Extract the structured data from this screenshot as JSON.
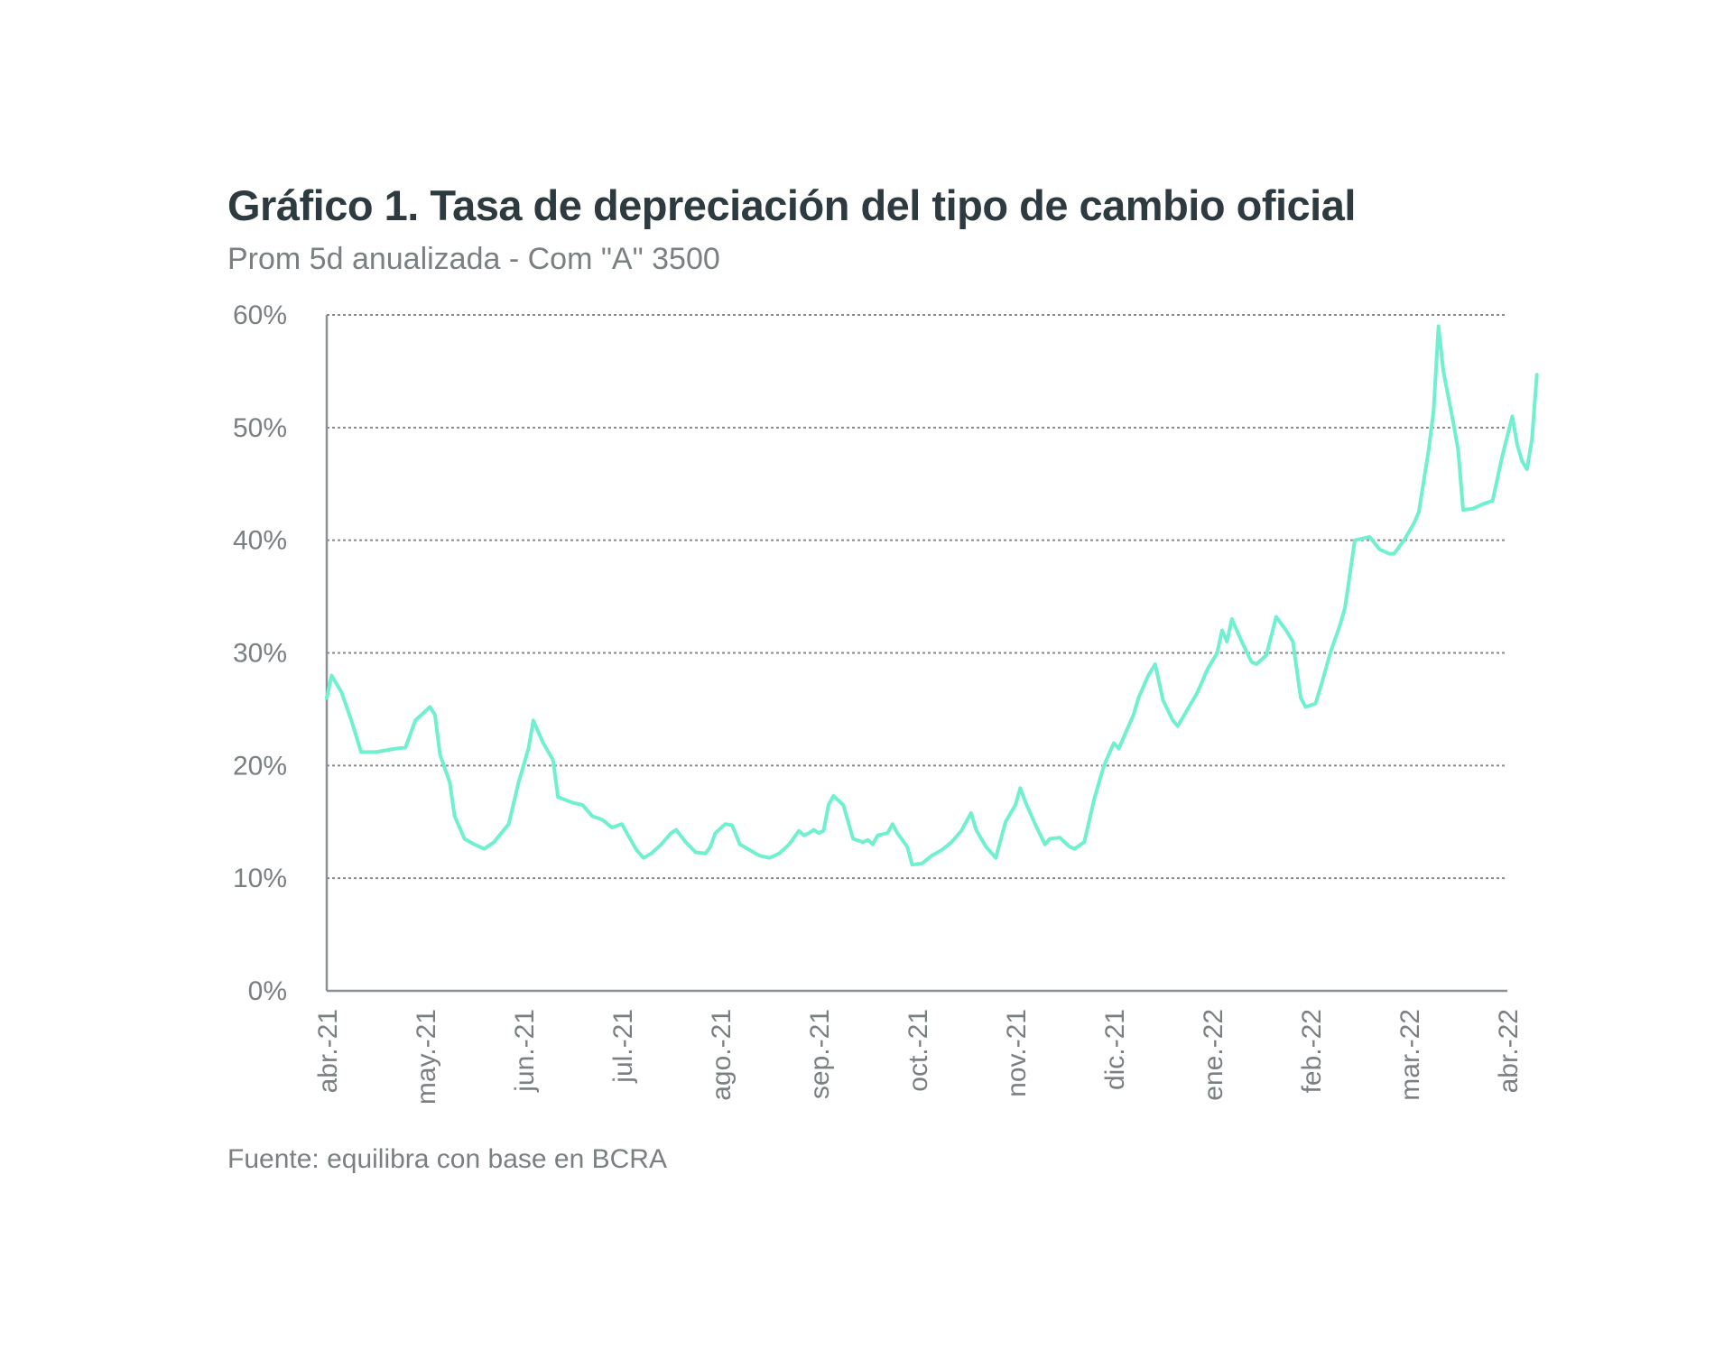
{
  "chart_data": {
    "type": "line",
    "title": "Gráfico 1. Tasa de depreciación del tipo de cambio oficial",
    "subtitle": "Prom 5d anualizada - Com \"A\" 3500",
    "source": "Fuente: equilibra con base en BCRA",
    "xlabel": "",
    "ylabel": "",
    "ylim": [
      0,
      60
    ],
    "yticks": [
      0,
      10,
      20,
      30,
      40,
      50,
      60
    ],
    "ytick_labels": [
      "0%",
      "10%",
      "20%",
      "30%",
      "40%",
      "50%",
      "60%"
    ],
    "xtick_labels": [
      "abr.-21",
      "may.-21",
      "jun.-21",
      "jul.-21",
      "ago.-21",
      "sep.-21",
      "oct.-21",
      "nov.-21",
      "dic.-21",
      "ene.-22",
      "feb.-22",
      "mar.-22",
      "abr.-22"
    ],
    "grid": "horizontal dotted",
    "legend": "none",
    "line_color": "#6ff0cf",
    "series": [
      {
        "values": [
          [
            0.0,
            26.0
          ],
          [
            0.05,
            28.0
          ],
          [
            0.15,
            26.5
          ],
          [
            0.25,
            24.0
          ],
          [
            0.35,
            21.2
          ],
          [
            0.5,
            21.2
          ],
          [
            0.7,
            21.5
          ],
          [
            0.8,
            21.6
          ],
          [
            0.9,
            24.0
          ],
          [
            1.0,
            24.8
          ],
          [
            1.05,
            25.2
          ],
          [
            1.1,
            24.5
          ],
          [
            1.15,
            21.0
          ],
          [
            1.25,
            18.5
          ],
          [
            1.3,
            15.5
          ],
          [
            1.4,
            13.5
          ],
          [
            1.5,
            13.0
          ],
          [
            1.6,
            12.6
          ],
          [
            1.7,
            13.2
          ],
          [
            1.85,
            14.8
          ],
          [
            1.95,
            18.5
          ],
          [
            2.05,
            21.5
          ],
          [
            2.1,
            24.0
          ],
          [
            2.2,
            22.0
          ],
          [
            2.3,
            20.5
          ],
          [
            2.35,
            17.2
          ],
          [
            2.5,
            16.7
          ],
          [
            2.6,
            16.5
          ],
          [
            2.7,
            15.5
          ],
          [
            2.8,
            15.2
          ],
          [
            2.9,
            14.5
          ],
          [
            3.0,
            14.8
          ],
          [
            3.05,
            14.0
          ],
          [
            3.15,
            12.5
          ],
          [
            3.22,
            11.8
          ],
          [
            3.3,
            12.2
          ],
          [
            3.4,
            13.0
          ],
          [
            3.5,
            14.0
          ],
          [
            3.55,
            14.3
          ],
          [
            3.65,
            13.2
          ],
          [
            3.75,
            12.3
          ],
          [
            3.85,
            12.2
          ],
          [
            3.9,
            12.8
          ],
          [
            3.95,
            14.0
          ],
          [
            4.05,
            14.8
          ],
          [
            4.12,
            14.7
          ],
          [
            4.2,
            13.0
          ],
          [
            4.3,
            12.5
          ],
          [
            4.4,
            12.0
          ],
          [
            4.5,
            11.8
          ],
          [
            4.6,
            12.2
          ],
          [
            4.7,
            13.0
          ],
          [
            4.8,
            14.2
          ],
          [
            4.85,
            13.8
          ],
          [
            4.9,
            14.0
          ],
          [
            4.95,
            14.3
          ],
          [
            5.0,
            14.0
          ],
          [
            5.05,
            14.2
          ],
          [
            5.1,
            16.5
          ],
          [
            5.15,
            17.3
          ],
          [
            5.25,
            16.5
          ],
          [
            5.35,
            13.5
          ],
          [
            5.45,
            13.2
          ],
          [
            5.5,
            13.4
          ],
          [
            5.55,
            13.0
          ],
          [
            5.6,
            13.8
          ],
          [
            5.7,
            14.0
          ],
          [
            5.75,
            14.8
          ],
          [
            5.8,
            14.0
          ],
          [
            5.9,
            12.8
          ],
          [
            5.95,
            11.2
          ],
          [
            6.05,
            11.3
          ],
          [
            6.15,
            12.0
          ],
          [
            6.25,
            12.5
          ],
          [
            6.35,
            13.2
          ],
          [
            6.45,
            14.2
          ],
          [
            6.55,
            15.8
          ],
          [
            6.6,
            14.3
          ],
          [
            6.7,
            12.8
          ],
          [
            6.8,
            11.8
          ],
          [
            6.9,
            15.0
          ],
          [
            7.0,
            16.5
          ],
          [
            7.05,
            18.0
          ],
          [
            7.1,
            16.8
          ],
          [
            7.2,
            14.8
          ],
          [
            7.3,
            13.0
          ],
          [
            7.35,
            13.5
          ],
          [
            7.45,
            13.6
          ],
          [
            7.55,
            12.8
          ],
          [
            7.6,
            12.6
          ],
          [
            7.7,
            13.2
          ],
          [
            7.8,
            17.0
          ],
          [
            7.9,
            20.0
          ],
          [
            8.0,
            22.0
          ],
          [
            8.05,
            21.5
          ],
          [
            8.1,
            22.5
          ],
          [
            8.2,
            24.5
          ],
          [
            8.25,
            26.0
          ],
          [
            8.35,
            28.0
          ],
          [
            8.42,
            29.0
          ],
          [
            8.5,
            25.8
          ],
          [
            8.6,
            24.0
          ],
          [
            8.65,
            23.5
          ],
          [
            8.75,
            25.0
          ],
          [
            8.85,
            26.5
          ],
          [
            8.95,
            28.5
          ],
          [
            9.05,
            30.0
          ],
          [
            9.1,
            32.0
          ],
          [
            9.15,
            31.0
          ],
          [
            9.2,
            33.0
          ],
          [
            9.3,
            31.0
          ],
          [
            9.4,
            29.2
          ],
          [
            9.45,
            29.0
          ],
          [
            9.55,
            29.8
          ],
          [
            9.6,
            31.5
          ],
          [
            9.65,
            33.2
          ],
          [
            9.75,
            32.0
          ],
          [
            9.82,
            31.0
          ],
          [
            9.9,
            26.0
          ],
          [
            9.95,
            25.2
          ],
          [
            10.05,
            25.5
          ],
          [
            10.12,
            27.5
          ],
          [
            10.2,
            30.0
          ],
          [
            10.3,
            32.5
          ],
          [
            10.35,
            34.0
          ],
          [
            10.45,
            40.0
          ],
          [
            10.55,
            40.2
          ],
          [
            10.6,
            40.3
          ],
          [
            10.7,
            39.2
          ],
          [
            10.8,
            38.8
          ],
          [
            10.85,
            38.8
          ],
          [
            10.95,
            40.0
          ],
          [
            11.05,
            41.5
          ],
          [
            11.1,
            42.5
          ],
          [
            11.2,
            48.0
          ],
          [
            11.25,
            51.5
          ],
          [
            11.3,
            59.0
          ],
          [
            11.35,
            55.0
          ],
          [
            11.45,
            50.5
          ],
          [
            11.5,
            48.0
          ],
          [
            11.55,
            42.7
          ],
          [
            11.65,
            42.8
          ],
          [
            11.75,
            43.2
          ],
          [
            11.85,
            43.5
          ],
          [
            11.95,
            47.5
          ],
          [
            12.05,
            51.0
          ],
          [
            12.1,
            48.5
          ],
          [
            12.15,
            47.0
          ],
          [
            12.2,
            46.3
          ],
          [
            12.25,
            49.0
          ],
          [
            12.3,
            54.7
          ]
        ]
      }
    ]
  }
}
